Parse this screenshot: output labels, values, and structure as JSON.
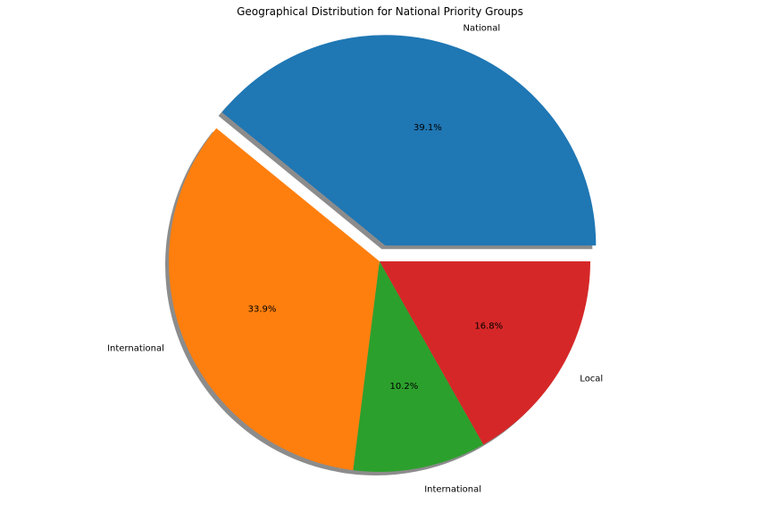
{
  "chart_data": {
    "type": "pie",
    "title": "Geographical Distribution for National Priority Groups",
    "categories": [
      "National",
      "International",
      "International",
      "Local"
    ],
    "values": [
      39.1,
      33.9,
      10.2,
      16.8
    ],
    "percent_labels": [
      "39.1%",
      "33.9%",
      "10.2%",
      "16.8%"
    ],
    "colors": [
      "#1f77b4",
      "#ff7f0e",
      "#2ca02c",
      "#d62728"
    ],
    "explode": [
      0.08,
      0,
      0,
      0
    ],
    "shadow": true,
    "start_angle_deg": 0,
    "direction": "counterclockwise"
  }
}
